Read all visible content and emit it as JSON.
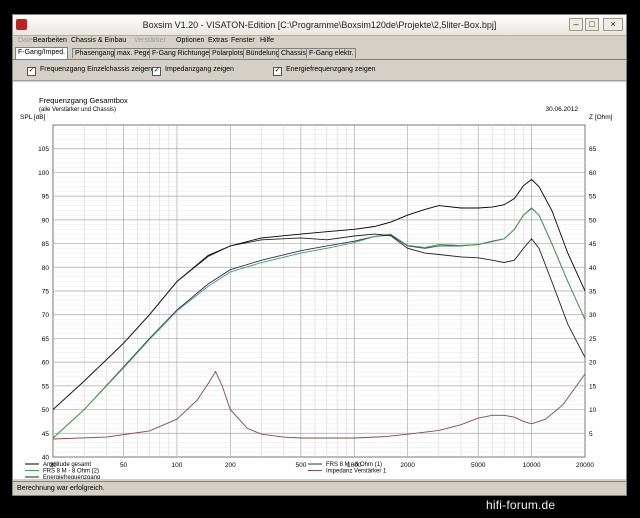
{
  "window": {
    "title": "Boxsim V1.20 - VISATON-Edition [C:\\Programme\\Boxsim120de\\Projekte\\2,5liter-Box.bpj]"
  },
  "menu": [
    "Datei",
    "Bearbeiten",
    "Chassis & Einbau",
    "Verstärker",
    "Optionen",
    "Extras",
    "Fenster",
    "Hilfe"
  ],
  "tabs": [
    "F-Gang/Imped.",
    "Phasengang",
    "max. Pegel",
    "F-Gang Richtungen",
    "Polarplots",
    "Bündelung",
    "Chassis",
    "F-Gang elektr."
  ],
  "checkboxes": [
    {
      "label": "Frequenzgang Einzelchassis zeigen",
      "checked": true
    },
    {
      "label": "Impedanzgang zeigen",
      "checked": true
    },
    {
      "label": "Energiefrequenzgang zeigen",
      "checked": true
    }
  ],
  "plot": {
    "title": "Frequenzgang Gesamtbox",
    "subtitle": "(alle Verstärker und Chassis)",
    "date": "30.06.2012"
  },
  "status": "Berechnung war erfolgreich.",
  "watermark": "hifi-forum.de",
  "chart_data": {
    "type": "line",
    "title": "Frequenzgang Gesamtbox",
    "subtitle": "(alle Verstärker und Chassis)",
    "xscale": "log",
    "xlim": [
      20,
      20000
    ],
    "xticks": [
      20,
      50,
      100,
      200,
      500,
      1000,
      2000,
      5000,
      10000,
      20000
    ],
    "ylabel": "SPL [dB]",
    "ylim": [
      40,
      110
    ],
    "yticks": [
      40,
      45,
      50,
      55,
      60,
      65,
      70,
      75,
      80,
      85,
      90,
      95,
      100,
      105
    ],
    "y2label": "Z [Ohm]",
    "y2lim": [
      0,
      70
    ],
    "y2ticks": [
      5,
      10,
      15,
      20,
      25,
      30,
      35,
      40,
      45,
      50,
      55,
      60,
      65
    ],
    "grid": true,
    "legend_position": "bottom-left",
    "series": [
      {
        "name": "Amplitude gesamt",
        "color": "#000000",
        "x": [
          20,
          30,
          50,
          70,
          100,
          150,
          200,
          300,
          500,
          700,
          1000,
          1300,
          1600,
          2000,
          2500,
          3000,
          4000,
          5000,
          6000,
          7000,
          8000,
          9000,
          10000,
          11000,
          13000,
          16000,
          20000
        ],
        "y": [
          50,
          56,
          64,
          70,
          77,
          82.5,
          84.5,
          86.2,
          87,
          87.5,
          88,
          88.6,
          89.5,
          91,
          92.2,
          93,
          92.5,
          92.5,
          92.7,
          93.2,
          94.5,
          97.2,
          98.5,
          97,
          92,
          83,
          75
        ]
      },
      {
        "name": "FRS 8 M - 8 Ohm (1)",
        "color": "#2b2b8a",
        "x": [
          20,
          30,
          50,
          70,
          100,
          150,
          200,
          300,
          500,
          700,
          1000,
          1300,
          1600,
          2000,
          2500,
          3000,
          4000,
          5000,
          6000,
          7000,
          8000,
          9000,
          10000,
          11000,
          13000,
          16000,
          20000
        ],
        "y": [
          44,
          50,
          59,
          65,
          71,
          76.5,
          79.5,
          81.5,
          83.5,
          84.5,
          85.5,
          86.5,
          86.8,
          84.5,
          84,
          84.5,
          84.5,
          84.8,
          85.5,
          86,
          88,
          91,
          92.5,
          91,
          85,
          77,
          69
        ]
      },
      {
        "name": "FRS 8 M - 8 Ohm (2)",
        "color": "#3caa3c",
        "x": [
          20,
          30,
          50,
          70,
          100,
          150,
          200,
          300,
          500,
          700,
          1000,
          1300,
          1600,
          2000,
          2500,
          3000,
          4000,
          5000,
          6000,
          7000,
          8000,
          9000,
          10000,
          11000,
          13000,
          16000,
          20000
        ],
        "y": [
          44,
          50,
          58.8,
          64.8,
          70.8,
          76,
          79,
          81,
          83,
          84,
          85.2,
          86.5,
          87,
          84.6,
          84.2,
          84.8,
          84.6,
          84.8,
          85.4,
          86,
          88,
          91,
          92.4,
          91,
          85,
          77,
          69
        ]
      },
      {
        "name": "Energiefrequenzgang",
        "color": "#222222",
        "x": [
          20,
          30,
          50,
          70,
          100,
          150,
          200,
          300,
          500,
          700,
          1000,
          1300,
          1600,
          2000,
          2500,
          3000,
          4000,
          5000,
          6000,
          7000,
          8000,
          9000,
          10000,
          11000,
          13000,
          16000,
          20000
        ],
        "y": [
          50,
          56,
          64,
          70,
          77,
          82.3,
          84.5,
          85.8,
          86.2,
          85.8,
          86.6,
          87,
          86.7,
          84,
          83,
          82.7,
          82.2,
          82,
          81.5,
          81,
          81.5,
          84,
          86,
          84,
          77,
          68,
          61
        ]
      },
      {
        "name": "Impedanz Verstärker 1",
        "color": "#8b4a4a",
        "axis": "right",
        "x": [
          20,
          40,
          70,
          100,
          130,
          150,
          165,
          180,
          200,
          250,
          300,
          400,
          500,
          700,
          1000,
          1500,
          2000,
          3000,
          4000,
          5000,
          6000,
          7000,
          8000,
          9000,
          10000,
          12000,
          15000,
          20000
        ],
        "y": [
          3.8,
          4.2,
          5.5,
          8,
          12,
          15.5,
          18,
          15,
          10,
          6,
          4.8,
          4.2,
          4,
          4,
          4,
          4.3,
          4.8,
          5.6,
          6.8,
          8.2,
          8.8,
          8.8,
          8.4,
          7.5,
          7,
          8,
          11,
          17.5
        ]
      }
    ]
  }
}
